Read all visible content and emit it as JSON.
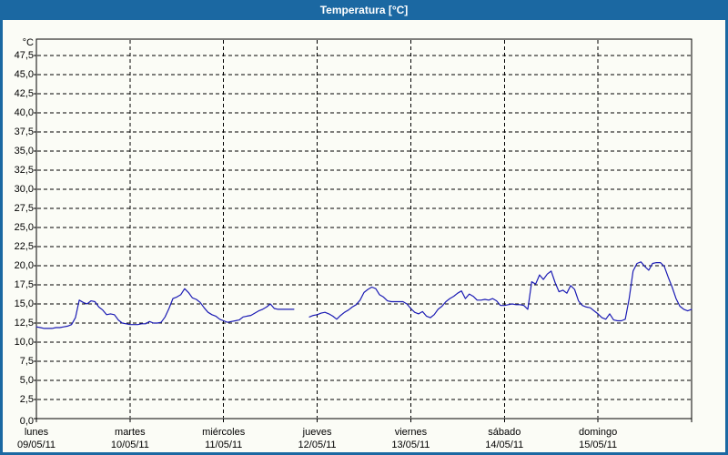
{
  "window": {
    "title": "Temperatura [°C]"
  },
  "colors": {
    "titlebar_bg": "#1b68a2",
    "frame_border": "#1b68a2",
    "content_bg": "#fbfcf6",
    "plot_border": "#000000",
    "grid": "#000000",
    "line": "#1b1bb4",
    "title_text": "#ffffff",
    "axis_text": "#000000"
  },
  "chart_data": {
    "type": "line",
    "title": "Temperatura [°C]",
    "legend": "none",
    "grid": "dashed",
    "y_axis": {
      "unit_label": "°C",
      "min": 0,
      "max": 50,
      "tick_step": 2.5,
      "tick_values": [
        0,
        2.5,
        5,
        7.5,
        10,
        12.5,
        15,
        17.5,
        20,
        22.5,
        25,
        27.5,
        30,
        32.5,
        35,
        37.5,
        40,
        42.5,
        45,
        47.5
      ],
      "tick_labels": [
        "0,0",
        "2,5",
        "5,0",
        "7,5",
        "10,0",
        "12,5",
        "15,0",
        "17,5",
        "20,0",
        "22,5",
        "25,0",
        "27,5",
        "30,0",
        "32,5",
        "35,0",
        "37,5",
        "40,0",
        "42,5",
        "45,0",
        "47,5"
      ]
    },
    "x_axis": {
      "hours_total": 168,
      "days": [
        {
          "name": "lunes",
          "date": "09/05/11"
        },
        {
          "name": "martes",
          "date": "10/05/11"
        },
        {
          "name": "miércoles",
          "date": "11/05/11"
        },
        {
          "name": "jueves",
          "date": "12/05/11"
        },
        {
          "name": "viernes",
          "date": "13/05/11"
        },
        {
          "name": "sábado",
          "date": "14/05/11"
        },
        {
          "name": "domingo",
          "date": "15/05/11"
        }
      ]
    },
    "series": [
      {
        "name": "Temperatura",
        "color": "#1b1bb4",
        "sample_interval_hours": 1,
        "note": "null values = gap in recording (Wednesday evening)",
        "values": [
          12.0,
          11.9,
          11.8,
          11.8,
          11.8,
          11.9,
          11.9,
          12.0,
          12.1,
          12.3,
          13.2,
          15.5,
          15.2,
          15.0,
          15.4,
          15.3,
          14.6,
          14.2,
          13.6,
          13.7,
          13.6,
          12.9,
          12.5,
          12.4,
          12.3,
          12.3,
          12.3,
          12.4,
          12.4,
          12.7,
          12.5,
          12.5,
          12.6,
          13.3,
          14.4,
          15.7,
          15.9,
          16.2,
          17.0,
          16.5,
          15.8,
          15.6,
          15.2,
          14.5,
          13.9,
          13.6,
          13.4,
          13.0,
          12.8,
          12.6,
          12.7,
          12.8,
          12.9,
          13.3,
          13.4,
          13.5,
          13.8,
          14.1,
          14.3,
          14.6,
          15.0,
          14.4,
          14.3,
          14.3,
          14.3,
          14.3,
          14.3,
          null,
          null,
          null,
          13.3,
          13.5,
          13.6,
          13.8,
          13.9,
          13.7,
          13.4,
          13.0,
          13.5,
          13.9,
          14.2,
          14.6,
          14.9,
          15.5,
          16.5,
          16.9,
          17.2,
          17.0,
          16.2,
          15.9,
          15.4,
          15.3,
          15.3,
          15.3,
          15.3,
          15.0,
          14.4,
          13.9,
          13.7,
          14.0,
          13.4,
          13.2,
          13.6,
          14.3,
          14.7,
          15.3,
          15.7,
          16.0,
          16.4,
          16.7,
          15.7,
          16.3,
          16.0,
          15.5,
          15.5,
          15.6,
          15.5,
          15.7,
          15.4,
          14.8,
          14.8,
          14.9,
          15.0,
          14.9,
          14.9,
          14.8,
          14.3,
          17.9,
          17.6,
          18.8,
          18.2,
          18.9,
          19.3,
          17.8,
          16.6,
          16.8,
          16.4,
          17.4,
          16.9,
          15.4,
          14.8,
          14.6,
          14.5,
          14.1,
          13.7,
          13.2,
          13.0,
          13.7,
          12.9,
          12.8,
          12.8,
          13.0,
          15.7,
          19.3,
          20.3,
          20.5,
          19.9,
          19.4,
          20.3,
          20.4,
          20.4,
          19.9,
          18.5,
          17.2,
          15.7,
          14.7,
          14.3,
          14.1,
          14.3
        ]
      }
    ]
  }
}
